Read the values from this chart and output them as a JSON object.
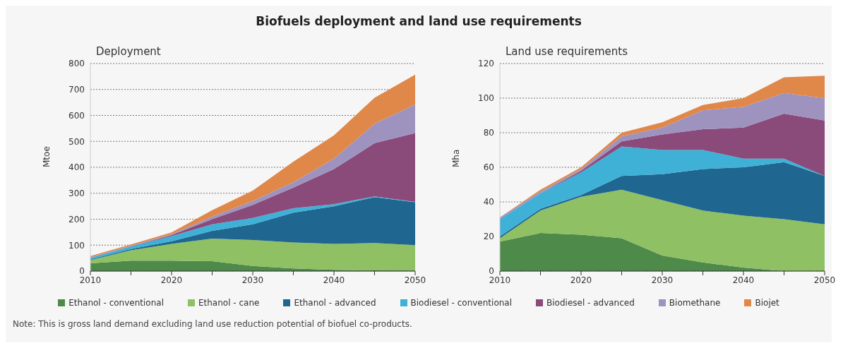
{
  "chart_data": [
    {
      "type": "area",
      "title": "Biofuels deployment and land use requirements",
      "subtitle": "Deployment",
      "ylabel": "Mtoe",
      "stacked": true,
      "grid": "y",
      "legend": "bottom",
      "x": [
        2010,
        2015,
        2020,
        2025,
        2030,
        2035,
        2040,
        2045,
        2050
      ],
      "xlim": [
        2010,
        2050
      ],
      "xticks": [
        2010,
        {
          "value": 2015,
          "label": null
        },
        2020,
        {
          "value": 2025,
          "label": null
        },
        2030,
        {
          "value": 2035,
          "label": null
        },
        2040,
        {
          "value": 2045,
          "label": null
        },
        2050
      ],
      "ylim": [
        0,
        800
      ],
      "yticks": [
        0,
        100,
        200,
        300,
        400,
        500,
        600,
        700,
        800
      ],
      "series": [
        {
          "name": "Ethanol - conventional",
          "color": "#4e8a4a",
          "values": [
            30,
            40,
            40,
            38,
            20,
            10,
            5,
            3,
            2
          ]
        },
        {
          "name": "Ethanol - cane",
          "color": "#8fc063",
          "values": [
            12,
            40,
            65,
            87,
            100,
            100,
            100,
            105,
            98
          ]
        },
        {
          "name": "Ethanol - advanced",
          "color": "#1f6690",
          "values": [
            3,
            5,
            10,
            30,
            60,
            115,
            145,
            177,
            165
          ]
        },
        {
          "name": "Biodiesel - conventional",
          "color": "#3fb0d6",
          "values": [
            7,
            10,
            20,
            25,
            25,
            17,
            8,
            3,
            2
          ]
        },
        {
          "name": "Biodiesel - advanced",
          "color": "#8a4a7a",
          "values": [
            0,
            1,
            4,
            20,
            50,
            80,
            135,
            205,
            265
          ]
        },
        {
          "name": "Biomethane",
          "color": "#9e93bf",
          "values": [
            1,
            2,
            3,
            10,
            15,
            20,
            40,
            75,
            110
          ]
        },
        {
          "name": "Biojet",
          "color": "#e0884a",
          "values": [
            5,
            5,
            7,
            25,
            40,
            80,
            90,
            100,
            115
          ]
        }
      ]
    },
    {
      "type": "area",
      "subtitle": "Land use requirements",
      "ylabel": "Mha",
      "stacked": true,
      "grid": "y",
      "annotations": [
        "Note: This is gross land demand excluding land use reduction potential of biofuel co-products."
      ],
      "x": [
        2010,
        2015,
        2020,
        2025,
        2030,
        2035,
        2040,
        2045,
        2050
      ],
      "xlim": [
        2010,
        2050
      ],
      "xticks": [
        2010,
        {
          "value": 2015,
          "label": null
        },
        2020,
        {
          "value": 2025,
          "label": null
        },
        2030,
        {
          "value": 2035,
          "label": null
        },
        2040,
        {
          "value": 2045,
          "label": null
        },
        2050
      ],
      "ylim": [
        0,
        120
      ],
      "yticks": [
        0,
        20,
        40,
        60,
        80,
        100,
        120
      ],
      "series": [
        {
          "color": "#4e8a4a",
          "values": [
            17,
            22,
            21,
            19,
            9,
            5,
            2,
            0,
            0
          ]
        },
        {
          "color": "#8fc063",
          "values": [
            2,
            13,
            22,
            28,
            32,
            30,
            30,
            30,
            27
          ]
        },
        {
          "color": "#1f6690",
          "values": [
            1,
            1,
            1,
            8,
            15,
            24,
            28,
            33,
            28
          ]
        },
        {
          "color": "#3fb0d6",
          "values": [
            10,
            9,
            13,
            17,
            14,
            11,
            5,
            2,
            0
          ]
        },
        {
          "color": "#8a4a7a",
          "values": [
            0,
            0,
            1,
            3,
            9,
            12,
            18,
            26,
            32
          ]
        },
        {
          "color": "#9e93bf",
          "values": [
            1,
            1,
            1,
            3,
            4,
            11,
            12,
            12,
            13
          ]
        },
        {
          "color": "#e0884a",
          "values": [
            0,
            1,
            1,
            2,
            3,
            3,
            5,
            9,
            13
          ]
        }
      ]
    }
  ]
}
